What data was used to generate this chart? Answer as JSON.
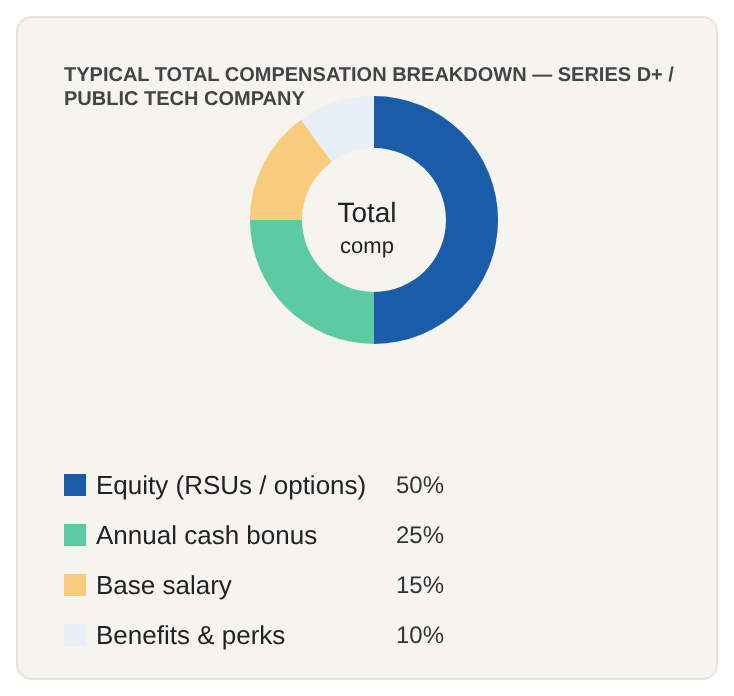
{
  "chart_data": {
    "type": "donut",
    "title": "TYPICAL TOTAL COMPENSATION BREAKDOWN — SERIES D+ / PUBLIC TECH COMPANY",
    "categories": [
      "Equity (RSUs / options)",
      "Annual cash bonus",
      "Base salary",
      "Benefits & perks"
    ],
    "values": [
      50,
      25,
      15,
      10
    ],
    "colors": [
      "#1a5ca8",
      "#5ccba3",
      "#f9cb7d",
      "#e8eff8"
    ],
    "annotations": [
      "Total",
      "comp"
    ],
    "value_labels": [
      "50%",
      "25%",
      "15%",
      "10%"
    ],
    "legend": "bottom"
  }
}
